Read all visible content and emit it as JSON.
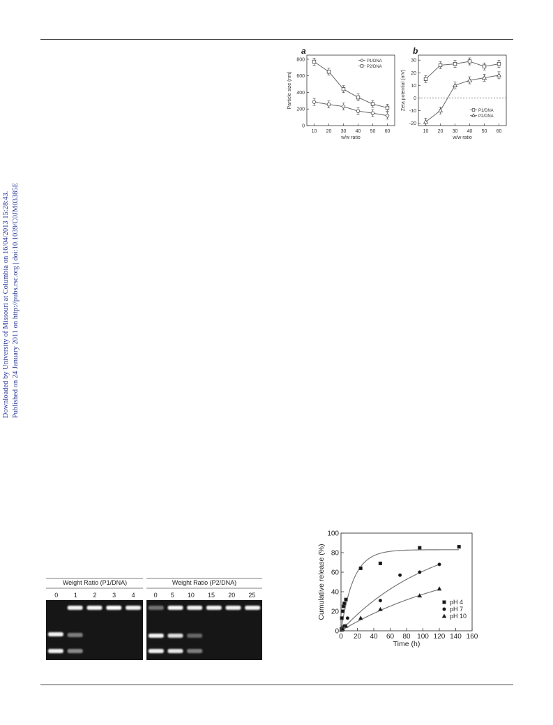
{
  "sidebar": {
    "line1": "Downloaded by University of Missouri at Columbia on 16/04/2013 15:28:43.",
    "line2": "Published on 24 January 2011 on http://pubs.rsc.org | doi:10.1039/C0JM03385E"
  },
  "figure_ab": {
    "chart_data": [
      {
        "type": "line",
        "panel_label": "a",
        "xlabel": "w/w ratio",
        "ylabel": "Particle size (nm)",
        "x": [
          10,
          20,
          30,
          40,
          50,
          60
        ],
        "xlim": [
          5,
          65
        ],
        "ylim": [
          0,
          850
        ],
        "yticks": [
          0,
          200,
          400,
          600,
          800
        ],
        "series": [
          {
            "name": "P1/DNA",
            "marker": "circle",
            "values": [
              285,
              255,
              230,
              175,
              150,
              120
            ]
          },
          {
            "name": "P2/DNA",
            "marker": "square",
            "values": [
              770,
              650,
              440,
              340,
              260,
              215
            ]
          }
        ],
        "legend_position": "top-right"
      },
      {
        "type": "line",
        "panel_label": "b",
        "xlabel": "w/w ratio",
        "ylabel": "Zeta potential (mV)",
        "x": [
          10,
          20,
          30,
          40,
          50,
          60
        ],
        "xlim": [
          5,
          65
        ],
        "ylim": [
          -22,
          34
        ],
        "yticks": [
          -20,
          -10,
          0,
          10,
          20,
          30
        ],
        "series": [
          {
            "name": "P1/DNA",
            "marker": "square",
            "values": [
              15,
              26,
              27,
              29,
              25,
              27
            ]
          },
          {
            "name": "P2/DNA",
            "marker": "triangle",
            "values": [
              -19,
              -10,
              10,
              14,
              16,
              18
            ]
          }
        ],
        "reference_line": 0,
        "legend_position": "bottom-right"
      }
    ]
  },
  "figure_gel": {
    "left_title": "Weight Ratio (P1/DNA)",
    "right_title": "Weight Ratio (P2/DNA)",
    "left_lanes": [
      "0",
      "1",
      "2",
      "3",
      "4"
    ],
    "right_lanes": [
      "0",
      "5",
      "10",
      "15",
      "20",
      "25"
    ]
  },
  "figure_release": {
    "chart_data": {
      "type": "scatter",
      "xlabel": "Time (h)",
      "ylabel": "Cumulative release (%)",
      "xlim": [
        0,
        160
      ],
      "ylim": [
        0,
        100
      ],
      "xticks": [
        0,
        20,
        40,
        60,
        80,
        100,
        120,
        140,
        160
      ],
      "yticks": [
        0,
        20,
        40,
        60,
        80,
        100
      ],
      "series": [
        {
          "name": "pH 4",
          "marker": "square",
          "x": [
            0.5,
            1,
            2,
            3,
            4,
            6,
            24,
            48,
            96,
            144
          ],
          "y": [
            2,
            13,
            20,
            25,
            28,
            32,
            64,
            69,
            85,
            86
          ],
          "fit": {
            "plateau": 83,
            "rate": 0.065
          }
        },
        {
          "name": "pH 7",
          "marker": "circle",
          "x": [
            0.5,
            1,
            2,
            4,
            8,
            48,
            72,
            96,
            120
          ],
          "y": [
            1,
            2,
            3,
            5,
            13,
            31,
            57,
            60,
            68
          ],
          "fit": {
            "plateau": 105,
            "rate": 0.0087
          }
        },
        {
          "name": "pH 10",
          "marker": "triangle",
          "x": [
            0.5,
            2,
            6,
            24,
            48,
            96,
            120
          ],
          "y": [
            1,
            2,
            5,
            13,
            22,
            36,
            43
          ],
          "fit": {
            "plateau": 80,
            "rate": 0.0063
          }
        }
      ],
      "legend_position": "bottom-right"
    }
  }
}
